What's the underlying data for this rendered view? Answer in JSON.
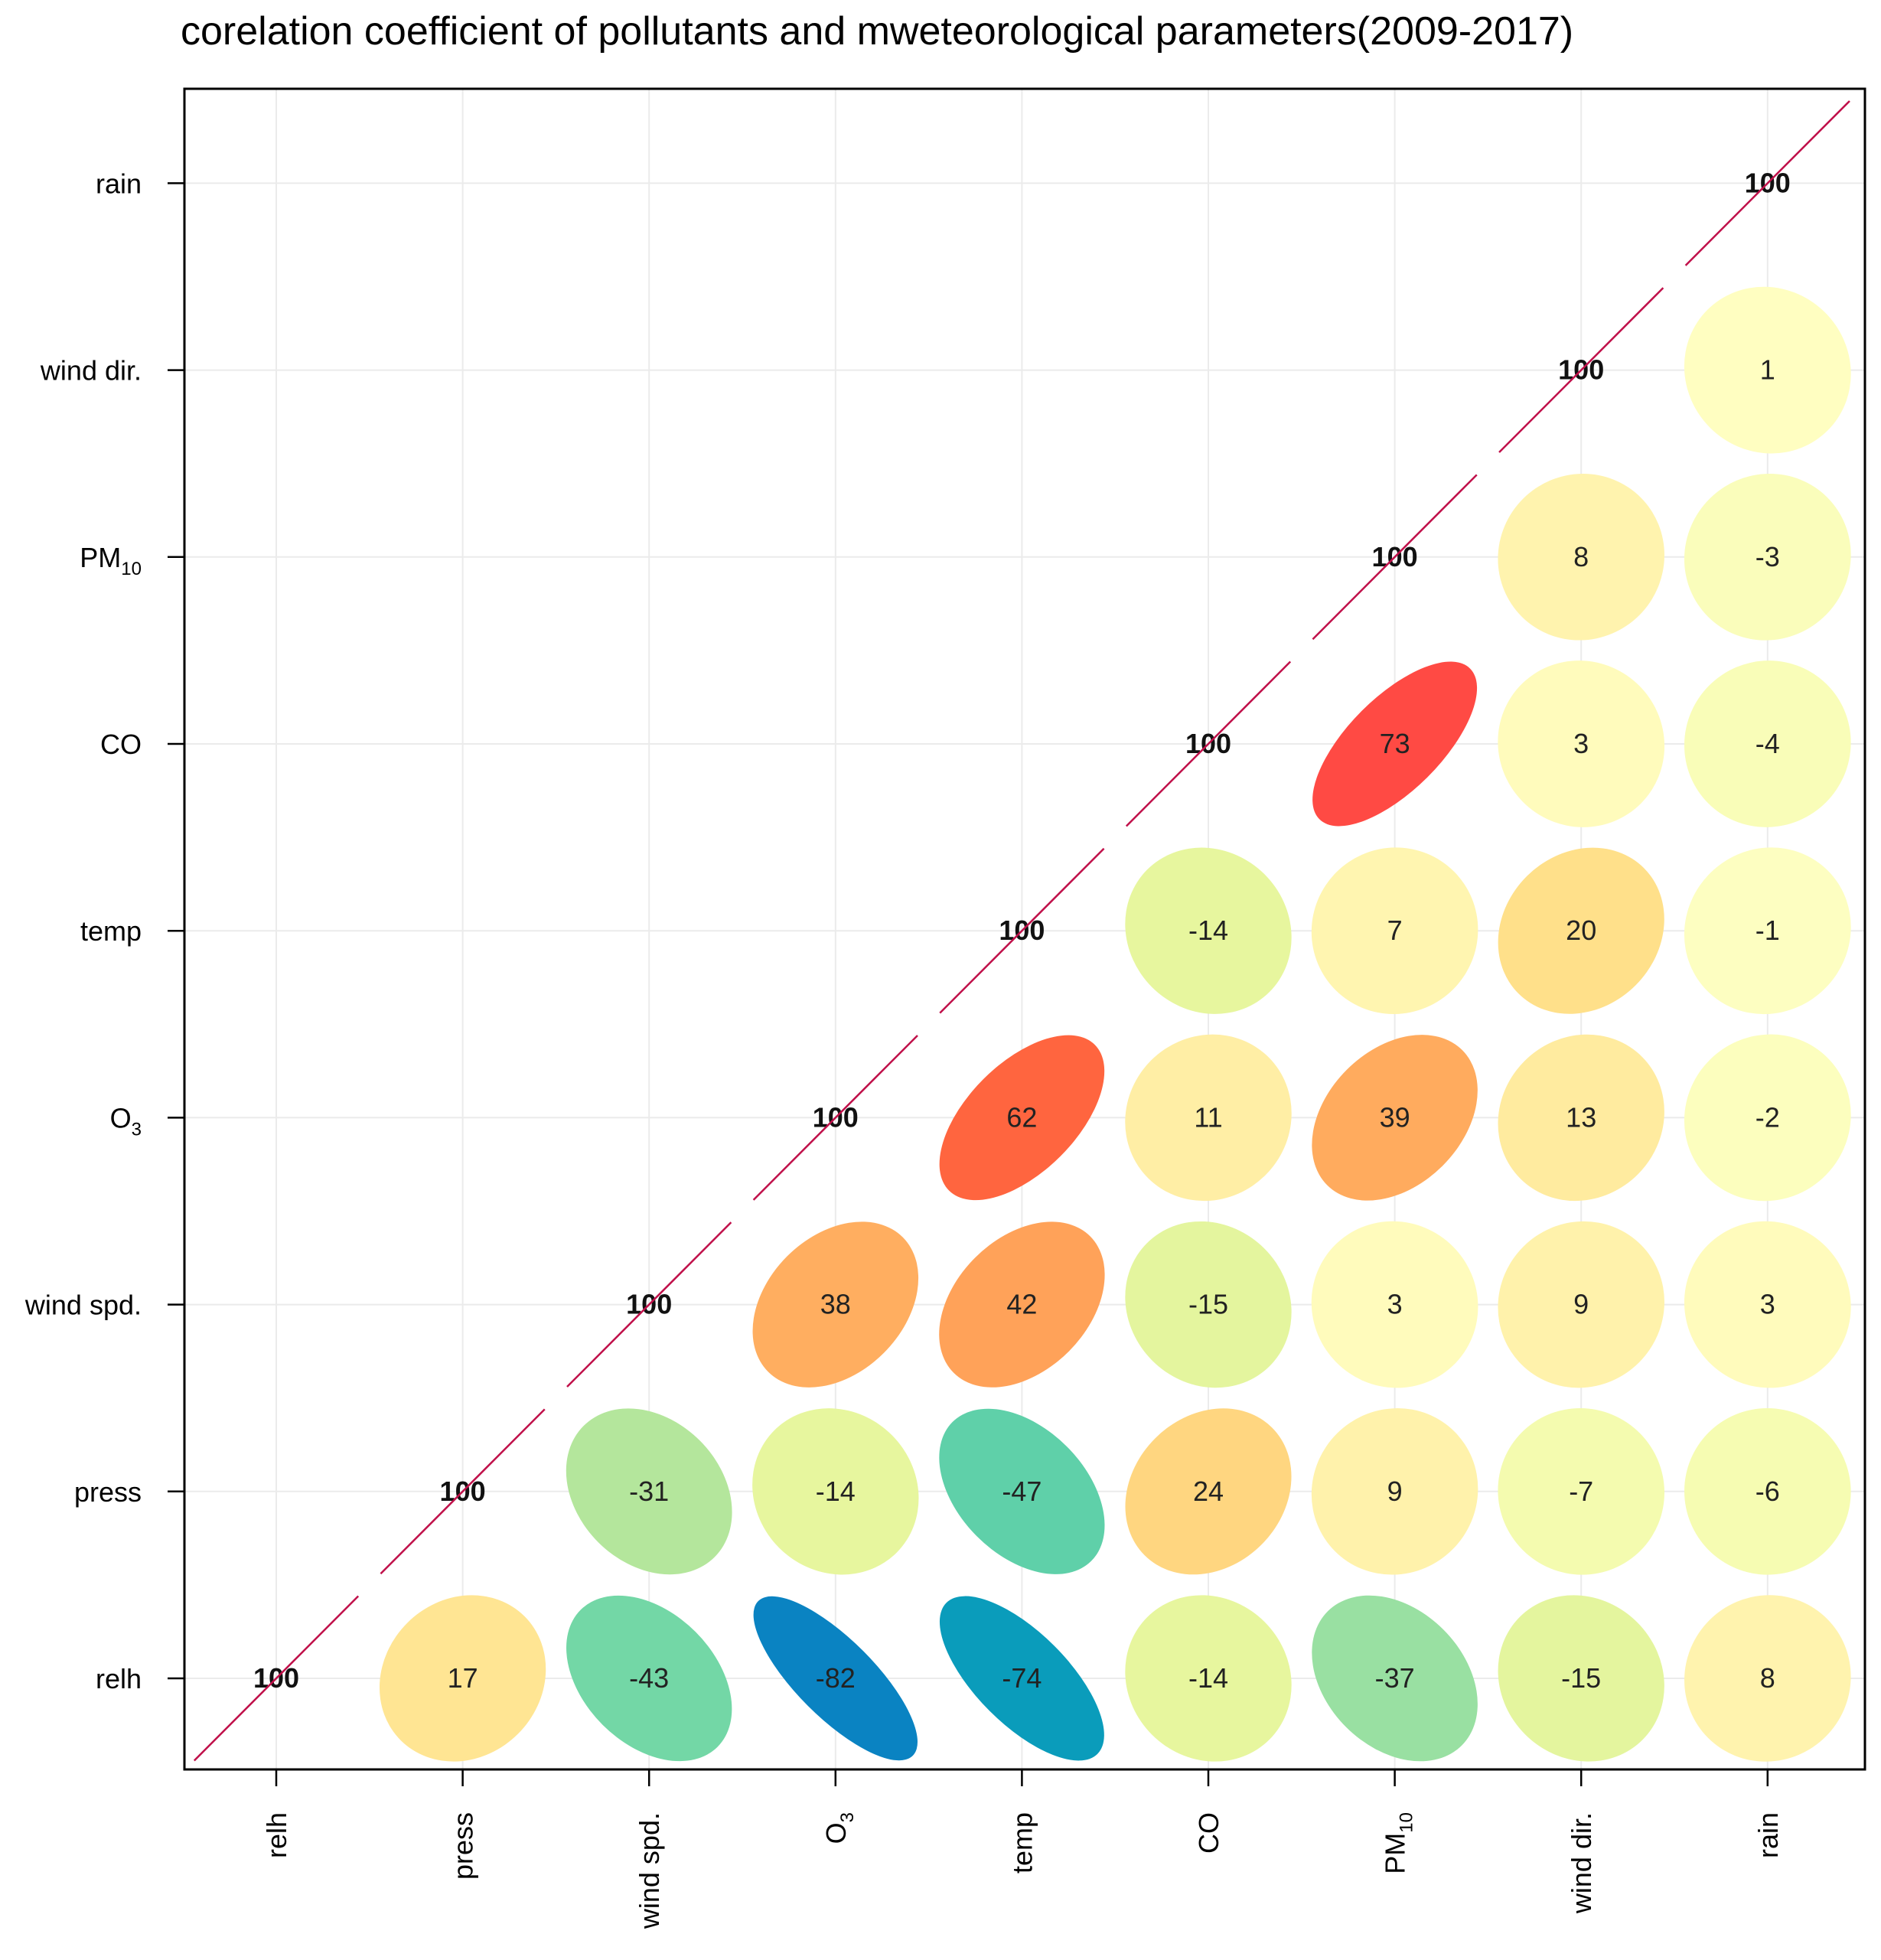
{
  "chart_data": {
    "type": "correlation-matrix",
    "title": "corelation coefficient of pollutants and mweteorological parameters(2009-2017)",
    "variables": [
      {
        "name": "relh",
        "sub": ""
      },
      {
        "name": "press",
        "sub": ""
      },
      {
        "name": "wind spd.",
        "sub": ""
      },
      {
        "name": "O",
        "sub": "3"
      },
      {
        "name": "temp",
        "sub": ""
      },
      {
        "name": "CO",
        "sub": ""
      },
      {
        "name": "PM",
        "sub": "10"
      },
      {
        "name": "wind dir.",
        "sub": ""
      },
      {
        "name": "rain",
        "sub": ""
      }
    ],
    "correlations": [
      {
        "col": 0,
        "row": 0,
        "value": 100
      },
      {
        "col": 1,
        "row": 0,
        "value": 17
      },
      {
        "col": 2,
        "row": 0,
        "value": -43
      },
      {
        "col": 3,
        "row": 0,
        "value": -82
      },
      {
        "col": 4,
        "row": 0,
        "value": -74
      },
      {
        "col": 5,
        "row": 0,
        "value": -14
      },
      {
        "col": 6,
        "row": 0,
        "value": -37
      },
      {
        "col": 7,
        "row": 0,
        "value": -15
      },
      {
        "col": 8,
        "row": 0,
        "value": 8
      },
      {
        "col": 1,
        "row": 1,
        "value": 100
      },
      {
        "col": 2,
        "row": 1,
        "value": -31
      },
      {
        "col": 3,
        "row": 1,
        "value": -14
      },
      {
        "col": 4,
        "row": 1,
        "value": -47
      },
      {
        "col": 5,
        "row": 1,
        "value": 24
      },
      {
        "col": 6,
        "row": 1,
        "value": 9
      },
      {
        "col": 7,
        "row": 1,
        "value": -7
      },
      {
        "col": 8,
        "row": 1,
        "value": -6
      },
      {
        "col": 2,
        "row": 2,
        "value": 100
      },
      {
        "col": 3,
        "row": 2,
        "value": 38
      },
      {
        "col": 4,
        "row": 2,
        "value": 42
      },
      {
        "col": 5,
        "row": 2,
        "value": -15
      },
      {
        "col": 6,
        "row": 2,
        "value": 3
      },
      {
        "col": 7,
        "row": 2,
        "value": 9
      },
      {
        "col": 8,
        "row": 2,
        "value": 3
      },
      {
        "col": 3,
        "row": 3,
        "value": 100
      },
      {
        "col": 4,
        "row": 3,
        "value": 62
      },
      {
        "col": 5,
        "row": 3,
        "value": 11
      },
      {
        "col": 6,
        "row": 3,
        "value": 39
      },
      {
        "col": 7,
        "row": 3,
        "value": 13
      },
      {
        "col": 8,
        "row": 3,
        "value": -2
      },
      {
        "col": 4,
        "row": 4,
        "value": 100
      },
      {
        "col": 5,
        "row": 4,
        "value": -14
      },
      {
        "col": 6,
        "row": 4,
        "value": 7
      },
      {
        "col": 7,
        "row": 4,
        "value": 20
      },
      {
        "col": 8,
        "row": 4,
        "value": -1
      },
      {
        "col": 5,
        "row": 5,
        "value": 100
      },
      {
        "col": 6,
        "row": 5,
        "value": 73
      },
      {
        "col": 7,
        "row": 5,
        "value": 3
      },
      {
        "col": 8,
        "row": 5,
        "value": -4
      },
      {
        "col": 6,
        "row": 6,
        "value": 100
      },
      {
        "col": 7,
        "row": 6,
        "value": 8
      },
      {
        "col": 8,
        "row": 6,
        "value": -3
      },
      {
        "col": 7,
        "row": 7,
        "value": 100
      },
      {
        "col": 8,
        "row": 7,
        "value": 1
      },
      {
        "col": 8,
        "row": 8,
        "value": 100
      }
    ],
    "colors": {
      "diagonal_line": "#c0104a",
      "scale": [
        {
          "at": -100,
          "color": "#0570b0"
        },
        {
          "at": -80,
          "color": "#0a85c4"
        },
        {
          "at": -72,
          "color": "#0aa4b8"
        },
        {
          "at": -45,
          "color": "#66d4a8"
        },
        {
          "at": -35,
          "color": "#a6e3a0"
        },
        {
          "at": -25,
          "color": "#c9eb96"
        },
        {
          "at": -12,
          "color": "#ecf8a0"
        },
        {
          "at": 0,
          "color": "#ffffc4"
        },
        {
          "at": 10,
          "color": "#fff0a8"
        },
        {
          "at": 20,
          "color": "#ffe08a"
        },
        {
          "at": 30,
          "color": "#ffc870"
        },
        {
          "at": 40,
          "color": "#ffa85c"
        },
        {
          "at": 60,
          "color": "#ff6a3e"
        },
        {
          "at": 75,
          "color": "#ff4545"
        },
        {
          "at": 100,
          "color": "#d7191c"
        }
      ]
    }
  }
}
